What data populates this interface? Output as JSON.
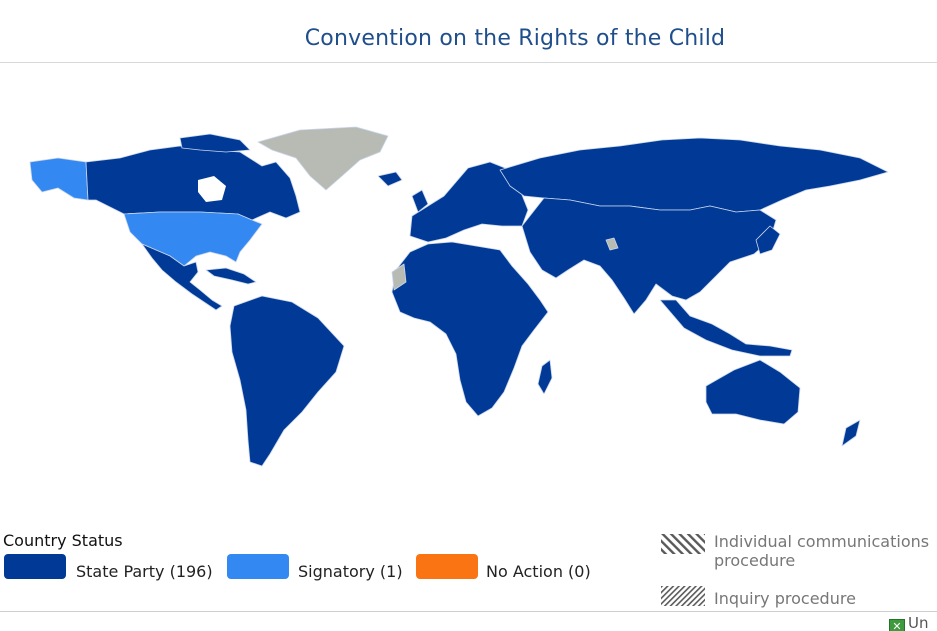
{
  "title": "Convention on the Rights of the Child",
  "colors": {
    "state_party": "#003a96",
    "signatory": "#3388f2",
    "no_action": "#fb7414",
    "no_data": "#b8bbb3",
    "border": "#c9d6ec"
  },
  "legend": {
    "heading": "Country Status",
    "items": [
      {
        "label": "State Party (196)",
        "color": "#003a96"
      },
      {
        "label": "Signatory (1)",
        "color": "#3388f2"
      },
      {
        "label": "No Action (0)",
        "color": "#fb7414"
      }
    ],
    "procedures": [
      {
        "label_line1": "Individual communications",
        "label_line2": "procedure",
        "pattern": "hatch-wide"
      },
      {
        "label_line1": "Inquiry procedure",
        "pattern": "hatch-dense"
      }
    ]
  },
  "export": {
    "label": "Un",
    "icon": "excel-icon"
  }
}
